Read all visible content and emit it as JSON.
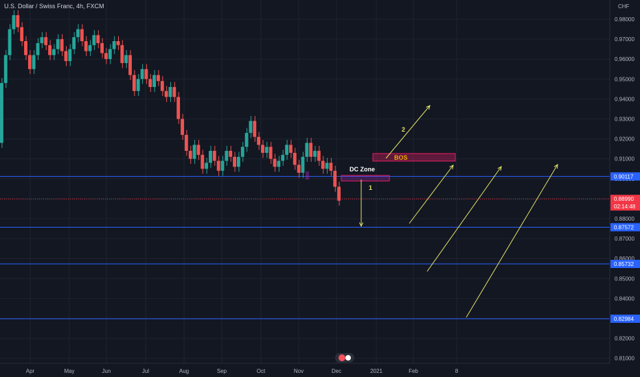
{
  "header": {
    "title": "U.S. Dollar / Swiss Franc, 4h, FXCM"
  },
  "axis": {
    "currency": "CHF"
  },
  "chart_data": {
    "type": "line",
    "title": "U.S. Dollar / Swiss Franc, 4h, FXCM",
    "ylim": [
      0.805,
      0.9845
    ],
    "y_ticks": [
      "0.98000",
      "0.97000",
      "0.96000",
      "0.95000",
      "0.94000",
      "0.93000",
      "0.92000",
      "0.91000",
      "0.90000",
      "0.89000",
      "0.88000",
      "0.87000",
      "0.86000",
      "0.85000",
      "0.84000",
      "0.83000",
      "0.82000",
      "0.81000"
    ],
    "x_ticks": [
      "Apr",
      "May",
      "Jun",
      "Jul",
      "Aug",
      "Sep",
      "Oct",
      "Nov",
      "Dec",
      "2021",
      "Feb",
      "8"
    ],
    "price_series": {
      "name": "USDCHF",
      "points": [
        [
          0,
          0.918
        ],
        [
          1,
          0.948
        ],
        [
          2,
          0.962
        ],
        [
          3,
          0.975
        ],
        [
          4,
          0.982
        ],
        [
          5,
          0.976
        ],
        [
          6,
          0.969
        ],
        [
          7,
          0.962
        ],
        [
          8,
          0.955
        ],
        [
          9,
          0.962
        ],
        [
          10,
          0.968
        ],
        [
          11,
          0.971
        ],
        [
          12,
          0.967
        ],
        [
          13,
          0.962
        ],
        [
          14,
          0.965
        ],
        [
          15,
          0.97
        ],
        [
          16,
          0.964
        ],
        [
          17,
          0.959
        ],
        [
          18,
          0.965
        ],
        [
          19,
          0.971
        ],
        [
          20,
          0.975
        ],
        [
          21,
          0.969
        ],
        [
          22,
          0.964
        ],
        [
          23,
          0.967
        ],
        [
          24,
          0.972
        ],
        [
          25,
          0.968
        ],
        [
          26,
          0.963
        ],
        [
          27,
          0.96
        ],
        [
          28,
          0.965
        ],
        [
          29,
          0.969
        ],
        [
          30,
          0.967
        ],
        [
          31,
          0.958
        ],
        [
          32,
          0.962
        ],
        [
          33,
          0.952
        ],
        [
          34,
          0.944
        ],
        [
          35,
          0.95
        ],
        [
          36,
          0.955
        ],
        [
          37,
          0.95
        ],
        [
          38,
          0.946
        ],
        [
          39,
          0.952
        ],
        [
          40,
          0.949
        ],
        [
          41,
          0.944
        ],
        [
          42,
          0.941
        ],
        [
          43,
          0.946
        ],
        [
          44,
          0.941
        ],
        [
          45,
          0.93
        ],
        [
          46,
          0.922
        ],
        [
          47,
          0.914
        ],
        [
          48,
          0.91
        ],
        [
          49,
          0.917
        ],
        [
          50,
          0.912
        ],
        [
          51,
          0.905
        ],
        [
          52,
          0.908
        ],
        [
          53,
          0.914
        ],
        [
          54,
          0.909
        ],
        [
          55,
          0.904
        ],
        [
          56,
          0.909
        ],
        [
          57,
          0.914
        ],
        [
          58,
          0.911
        ],
        [
          59,
          0.906
        ],
        [
          60,
          0.911
        ],
        [
          61,
          0.916
        ],
        [
          62,
          0.923
        ],
        [
          63,
          0.929
        ],
        [
          64,
          0.921
        ],
        [
          65,
          0.917
        ],
        [
          66,
          0.913
        ],
        [
          67,
          0.916
        ],
        [
          68,
          0.91
        ],
        [
          69,
          0.906
        ],
        [
          70,
          0.909
        ],
        [
          71,
          0.912
        ],
        [
          72,
          0.917
        ],
        [
          73,
          0.913
        ],
        [
          74,
          0.907
        ],
        [
          75,
          0.903
        ],
        [
          76,
          0.911
        ],
        [
          77,
          0.918
        ],
        [
          78,
          0.911
        ],
        [
          79,
          0.914
        ],
        [
          80,
          0.909
        ],
        [
          81,
          0.905
        ],
        [
          82,
          0.908
        ],
        [
          83,
          0.904
        ],
        [
          84,
          0.896
        ],
        [
          85,
          0.889
        ]
      ]
    },
    "horizontal_levels": [
      {
        "price": "0.90117",
        "value": 0.90117,
        "color": "#2962ff"
      },
      {
        "price": "0.87572",
        "value": 0.87572,
        "color": "#2962ff"
      },
      {
        "price": "0.85732",
        "value": 0.85732,
        "color": "#2962ff"
      },
      {
        "price": "0.82984",
        "value": 0.82984,
        "color": "#2962ff"
      }
    ],
    "current_price": {
      "price": "0.88990",
      "value": 0.8899,
      "countdown": "02:14:48",
      "color": "#f23645"
    },
    "zones": [
      {
        "label": "BOS",
        "color": "#f7a600"
      },
      {
        "label": "DC Zone",
        "color": "#ffffff"
      }
    ],
    "annotations": [
      "1",
      "2"
    ]
  }
}
